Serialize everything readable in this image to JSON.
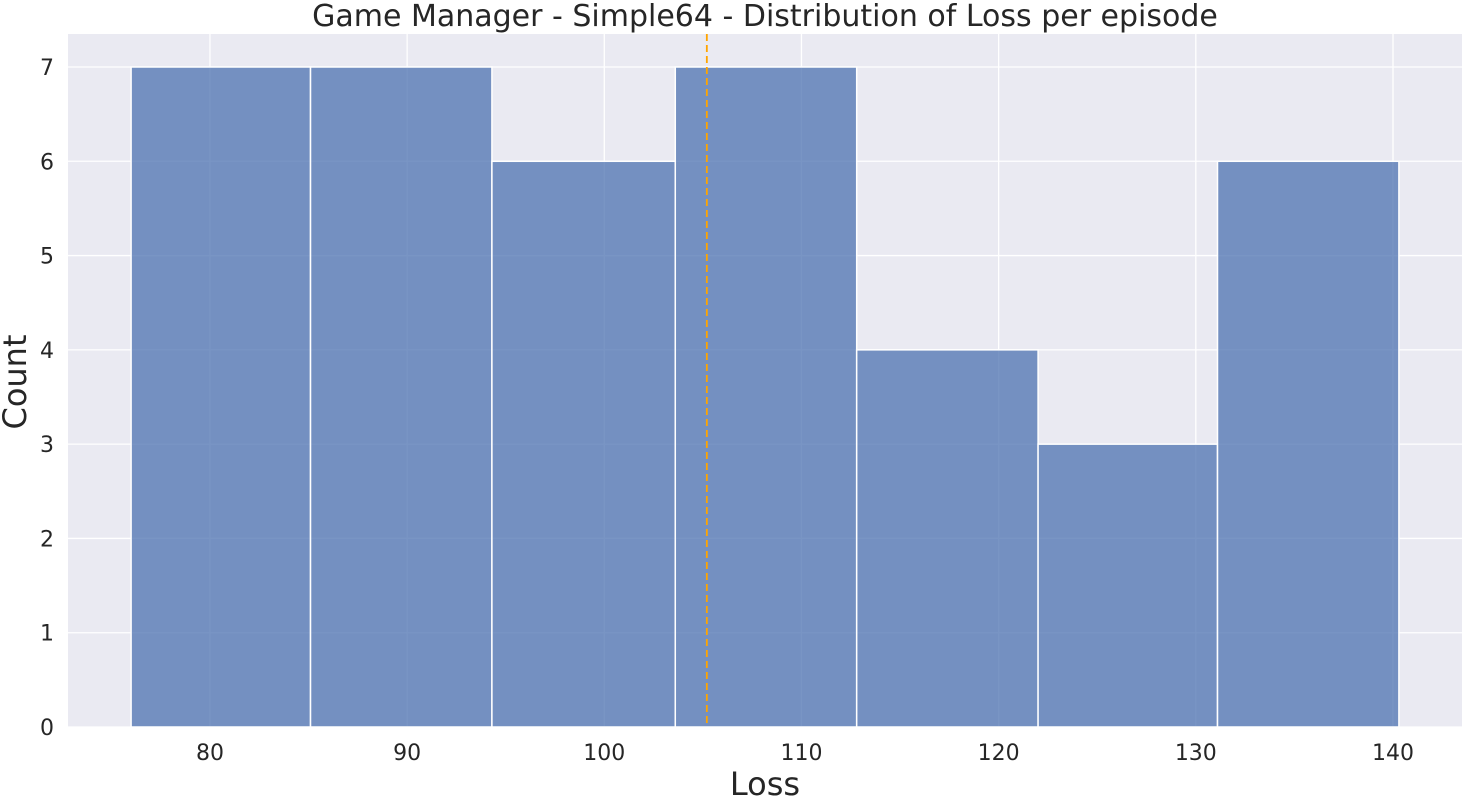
{
  "chart_data": {
    "type": "bar",
    "title": "Game Manager - Simple64 - Distribution of Loss per episode",
    "xlabel": "Loss",
    "ylabel": "Count",
    "bins": [
      {
        "start": 76.0,
        "end": 85.1,
        "count": 7
      },
      {
        "start": 85.1,
        "end": 94.3,
        "count": 7
      },
      {
        "start": 94.3,
        "end": 103.6,
        "count": 6
      },
      {
        "start": 103.6,
        "end": 112.8,
        "count": 7
      },
      {
        "start": 112.8,
        "end": 122.0,
        "count": 4
      },
      {
        "start": 122.0,
        "end": 131.1,
        "count": 3
      },
      {
        "start": 131.1,
        "end": 140.3,
        "count": 6
      }
    ],
    "mean_line": 105.2,
    "xlim": [
      72.8,
      143.5
    ],
    "ylim": [
      0,
      7.35
    ],
    "xticks": [
      "80",
      "90",
      "100",
      "110",
      "120",
      "130",
      "140"
    ],
    "yticks": [
      "0",
      "1",
      "2",
      "3",
      "4",
      "5",
      "6",
      "7"
    ],
    "grid": true,
    "colors": {
      "bar_fill": "#4c72b0",
      "bar_opacity": "0.75",
      "bar_edge": "#ffffff",
      "mean_line": "#ffa500",
      "plot_background": "#eaeaf2",
      "grid": "#ffffff"
    }
  }
}
